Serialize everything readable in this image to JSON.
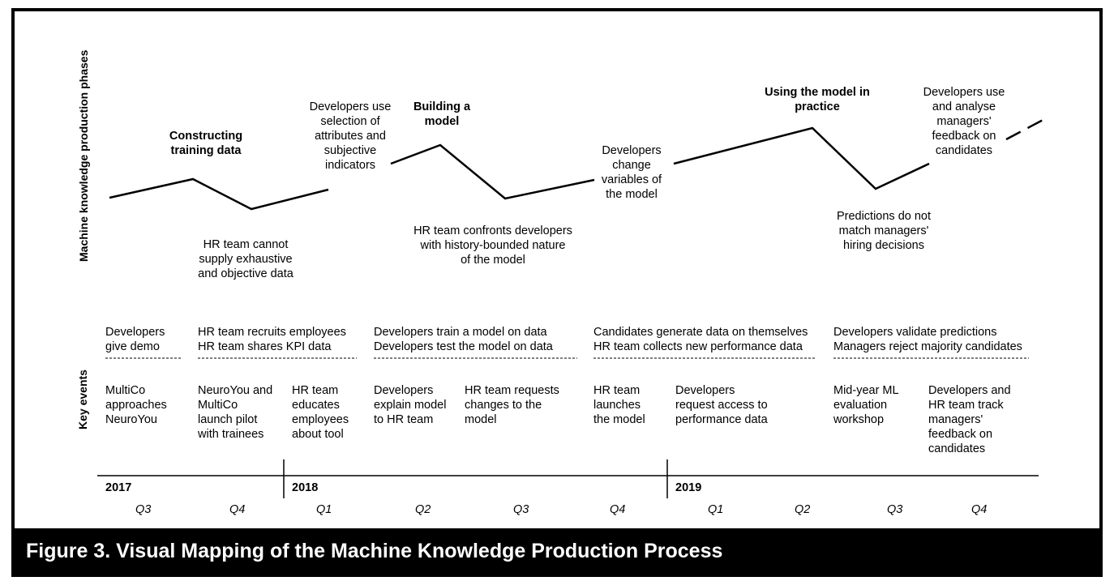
{
  "axis_labels": {
    "phases": "Machine knowledge production phases",
    "events": "Key events"
  },
  "phases": [
    {
      "title": "Constructing\ntraining data"
    },
    {
      "title": "Building a\nmodel"
    },
    {
      "title": "Using the model in\npractice"
    }
  ],
  "annotations": {
    "dev_use_selection": "Developers use\nselection of\nattributes and\nsubjective\nindicators",
    "hr_cannot_supply": "HR team cannot\nsupply exhaustive\nand objective data",
    "hr_confronts": "HR team confronts developers\nwith history-bounded nature\nof the model",
    "dev_change_vars": "Developers\nchange\nvariables of\nthe model",
    "predictions_mismatch": "Predictions do not\nmatch managers'\nhiring decisions",
    "dev_use_feedback": "Developers use\nand analyse\nmanagers'\nfeedback on\ncandidates"
  },
  "event_summaries": [
    {
      "text": "Developers\ngive demo"
    },
    {
      "text": "HR team recruits employees\nHR team shares KPI data"
    },
    {
      "text": "Developers train a model on data\nDevelopers test the model on data"
    },
    {
      "text": "Candidates generate data on themselves\nHR team collects new performance data"
    },
    {
      "text": "Developers validate predictions\nManagers reject majority candidates"
    }
  ],
  "divider": "-------------------",
  "events": [
    {
      "text": "MultiCo\napproaches\nNeuroYou"
    },
    {
      "text": "NeuroYou and\nMultiCo\nlaunch pilot\nwith trainees"
    },
    {
      "text": "HR team\neducates\nemployees\nabout tool"
    },
    {
      "text": "Developers\nexplain model\nto HR team"
    },
    {
      "text": "HR team requests\nchanges to the\nmodel"
    },
    {
      "text": "HR team\nlaunches\nthe model"
    },
    {
      "text": "Developers\nrequest access to\nperformance data"
    },
    {
      "text": "Mid-year ML\nevaluation\nworkshop"
    },
    {
      "text": "Developers and\nHR team track\nmanagers'\nfeedback on\ncandidates"
    }
  ],
  "years": [
    "2017",
    "2018",
    "2019"
  ],
  "quarters": [
    "Q3",
    "Q4",
    "Q1",
    "Q2",
    "Q3",
    "Q4",
    "Q1",
    "Q2",
    "Q3",
    "Q4"
  ],
  "caption": "Figure 3.  Visual Mapping of the Machine Knowledge Production Process"
}
